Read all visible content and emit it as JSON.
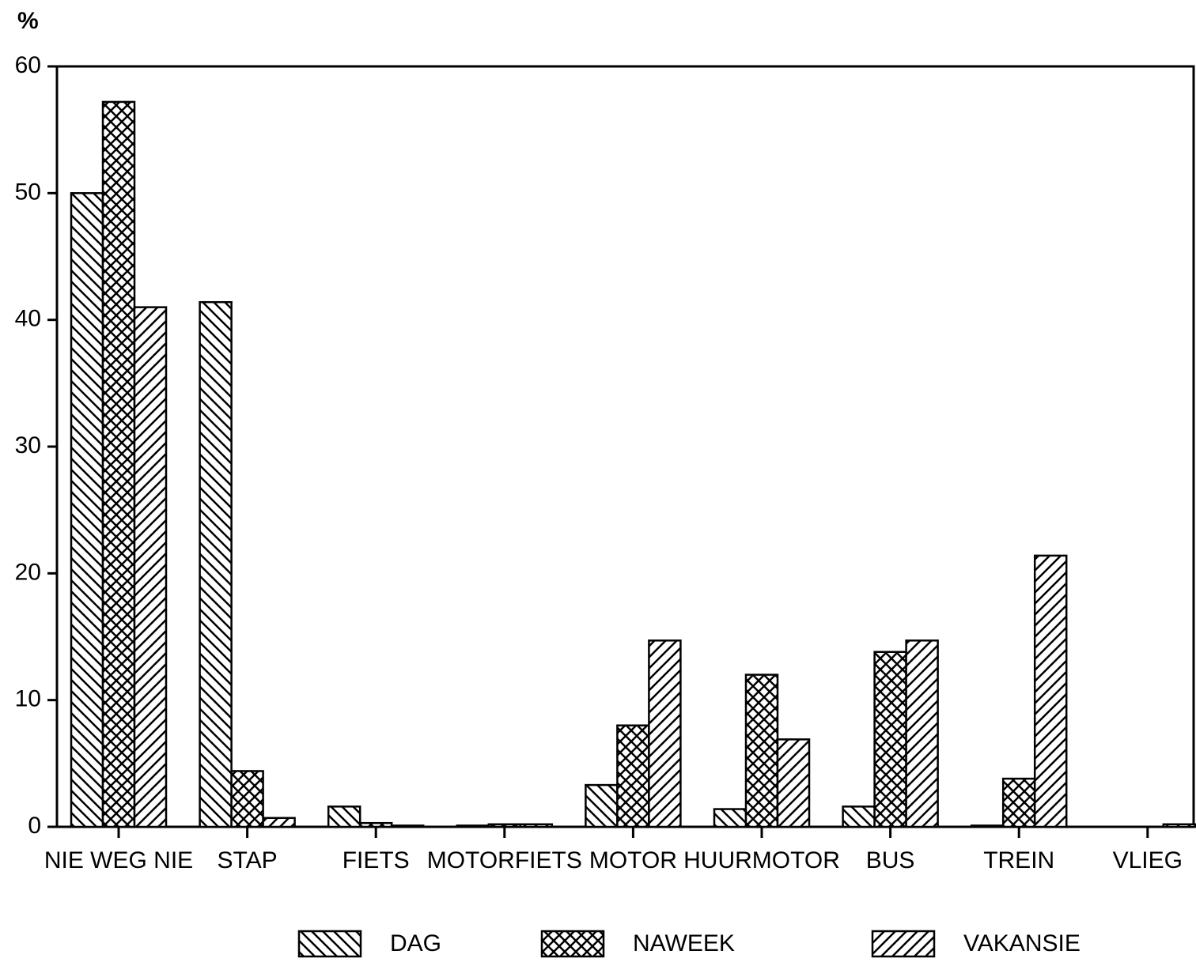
{
  "chart_data": {
    "type": "bar",
    "y_label": "%",
    "categories": [
      "NIE WEG NIE",
      "STAP",
      "FIETS",
      "MOTORFIETS",
      "MOTOR",
      "HUURMOTOR",
      "BUS",
      "TREIN",
      "VLIEG"
    ],
    "series": [
      {
        "name": "DAG",
        "color": "#000000",
        "pattern": "backslash",
        "values": [
          50,
          41.4,
          1.6,
          0.1,
          3.3,
          1.4,
          1.6,
          0.1,
          0
        ]
      },
      {
        "name": "NAWEEK",
        "color": "#000000",
        "pattern": "cross",
        "values": [
          57.2,
          4.4,
          0.3,
          0.2,
          8.0,
          12.0,
          13.8,
          3.8,
          0
        ]
      },
      {
        "name": "VAKANSIE",
        "color": "#000000",
        "pattern": "slash",
        "values": [
          41,
          0.7,
          0.1,
          0.2,
          14.7,
          6.9,
          14.7,
          21.4,
          0.2
        ]
      }
    ],
    "ylim": [
      0,
      60
    ],
    "yticks": [
      0,
      10,
      20,
      30,
      40,
      50,
      60
    ],
    "grid": false,
    "legend": "bottom"
  }
}
